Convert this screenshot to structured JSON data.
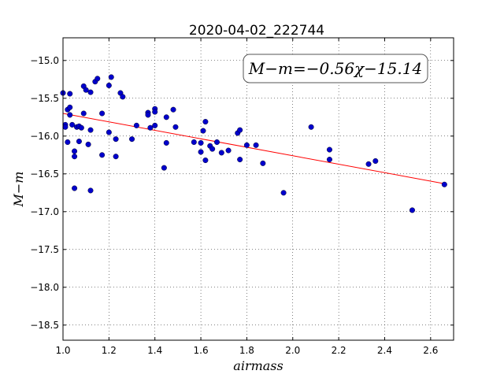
{
  "chart_data": {
    "type": "scatter",
    "title": "2020-04-02_222744",
    "xlabel": "airmass",
    "ylabel": "M−m",
    "xlim": [
      1.0,
      2.7
    ],
    "ylim": [
      -18.7,
      -14.7
    ],
    "y_inverted": true,
    "grid": true,
    "xticks": [
      1.0,
      1.2,
      1.4,
      1.6,
      1.8,
      2.0,
      2.2,
      2.4,
      2.6
    ],
    "xtick_labels": [
      "1.0",
      "1.2",
      "1.4",
      "1.6",
      "1.8",
      "2.0",
      "2.2",
      "2.4",
      "2.6"
    ],
    "yticks": [
      -15.0,
      -15.5,
      -16.0,
      -16.5,
      -17.0,
      -17.5,
      -18.0,
      -18.5
    ],
    "ytick_labels": [
      "−15.0",
      "−15.5",
      "−16.0",
      "−16.5",
      "−17.0",
      "−17.5",
      "−18.0",
      "−18.5"
    ],
    "annotation": "M−m=−0.56χ−15.14",
    "fit": {
      "slope": -0.56,
      "intercept": -15.14,
      "x": [
        1.0,
        2.66
      ],
      "color": "#ff0000"
    },
    "series": [
      {
        "marker_color": "#0000cc",
        "points": [
          [
            1.0,
            -15.43
          ],
          [
            1.01,
            -15.85
          ],
          [
            1.01,
            -15.88
          ],
          [
            1.02,
            -16.08
          ],
          [
            1.02,
            -15.65
          ],
          [
            1.03,
            -15.72
          ],
          [
            1.03,
            -15.62
          ],
          [
            1.03,
            -15.44
          ],
          [
            1.04,
            -15.85
          ],
          [
            1.05,
            -16.2
          ],
          [
            1.05,
            -16.27
          ],
          [
            1.05,
            -16.69
          ],
          [
            1.06,
            -15.88
          ],
          [
            1.07,
            -16.07
          ],
          [
            1.07,
            -15.87
          ],
          [
            1.08,
            -15.89
          ],
          [
            1.09,
            -15.7
          ],
          [
            1.09,
            -15.34
          ],
          [
            1.1,
            -15.39
          ],
          [
            1.11,
            -16.11
          ],
          [
            1.12,
            -15.42
          ],
          [
            1.12,
            -15.92
          ],
          [
            1.12,
            -16.72
          ],
          [
            1.14,
            -15.28
          ],
          [
            1.15,
            -15.24
          ],
          [
            1.17,
            -15.7
          ],
          [
            1.17,
            -16.25
          ],
          [
            1.2,
            -15.33
          ],
          [
            1.2,
            -15.95
          ],
          [
            1.21,
            -15.22
          ],
          [
            1.23,
            -16.04
          ],
          [
            1.23,
            -16.27
          ],
          [
            1.25,
            -15.43
          ],
          [
            1.26,
            -15.48
          ],
          [
            1.3,
            -16.04
          ],
          [
            1.32,
            -15.86
          ],
          [
            1.37,
            -15.69
          ],
          [
            1.37,
            -15.72
          ],
          [
            1.38,
            -15.89
          ],
          [
            1.4,
            -15.64
          ],
          [
            1.4,
            -15.68
          ],
          [
            1.4,
            -15.86
          ],
          [
            1.44,
            -16.42
          ],
          [
            1.45,
            -16.09
          ],
          [
            1.45,
            -15.75
          ],
          [
            1.48,
            -15.65
          ],
          [
            1.49,
            -15.88
          ],
          [
            1.57,
            -16.08
          ],
          [
            1.6,
            -16.09
          ],
          [
            1.6,
            -16.21
          ],
          [
            1.61,
            -15.93
          ],
          [
            1.62,
            -15.81
          ],
          [
            1.62,
            -16.32
          ],
          [
            1.64,
            -16.13
          ],
          [
            1.65,
            -16.17
          ],
          [
            1.67,
            -16.08
          ],
          [
            1.69,
            -16.22
          ],
          [
            1.72,
            -16.19
          ],
          [
            1.76,
            -15.96
          ],
          [
            1.77,
            -15.92
          ],
          [
            1.77,
            -16.31
          ],
          [
            1.8,
            -16.12
          ],
          [
            1.84,
            -16.12
          ],
          [
            1.87,
            -16.36
          ],
          [
            1.96,
            -16.75
          ],
          [
            2.08,
            -15.88
          ],
          [
            2.16,
            -16.31
          ],
          [
            2.16,
            -16.18
          ],
          [
            2.33,
            -16.37
          ],
          [
            2.36,
            -16.33
          ],
          [
            2.52,
            -16.98
          ],
          [
            2.66,
            -16.64
          ]
        ]
      }
    ]
  }
}
